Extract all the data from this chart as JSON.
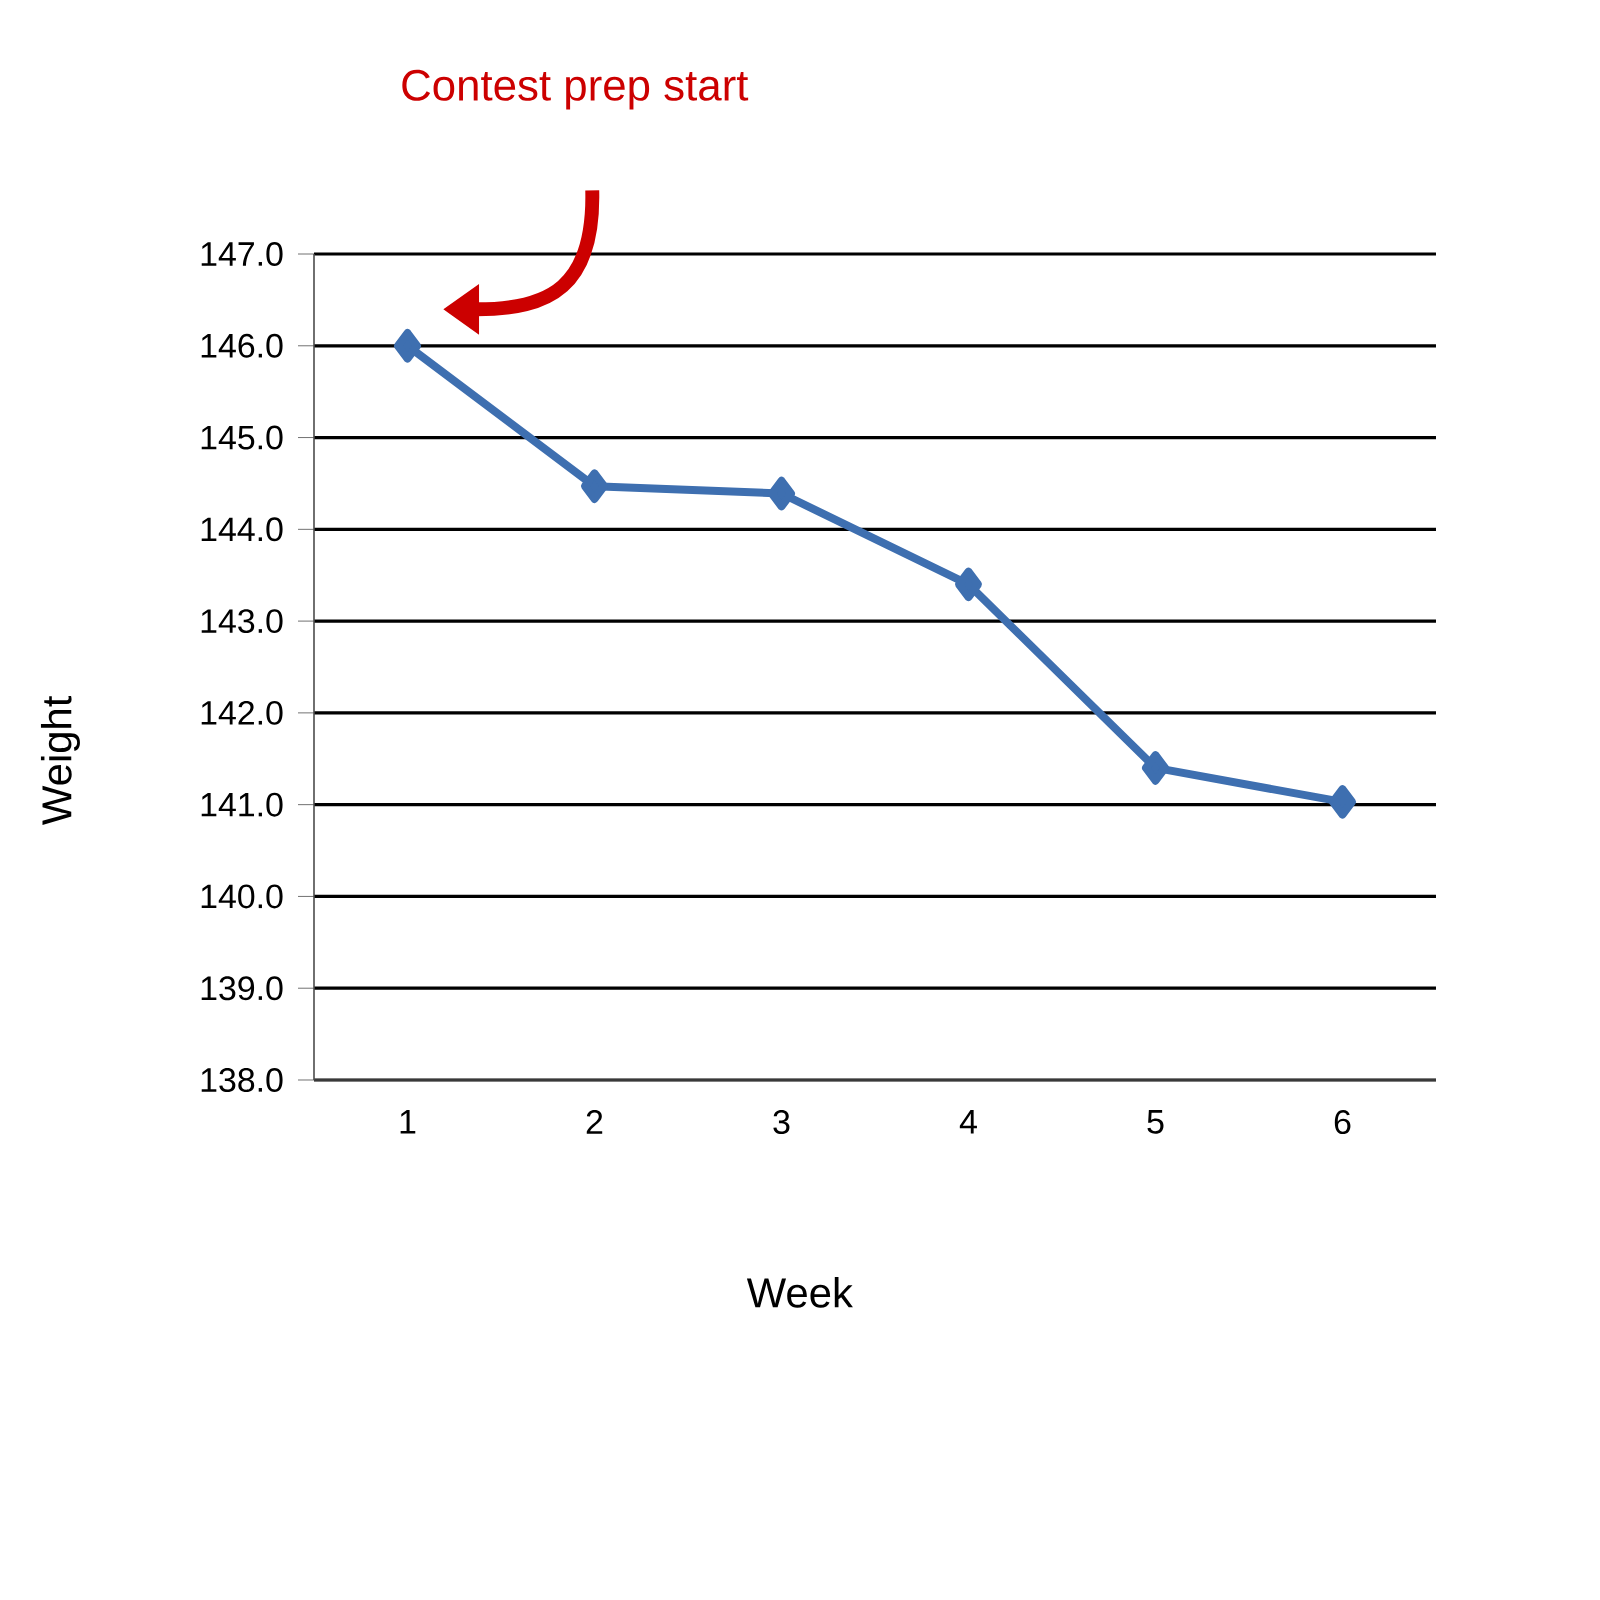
{
  "chart_data": {
    "type": "line",
    "xlabel": "Week",
    "ylabel": "Weight",
    "categories": [
      "1",
      "2",
      "3",
      "4",
      "5",
      "6"
    ],
    "series": [
      {
        "color": "#3e6fb0",
        "values": [
          146.0,
          144.47,
          144.39,
          143.4,
          141.4,
          141.03
        ]
      }
    ],
    "ylim": [
      138,
      147
    ],
    "yticks": [
      {
        "value": 138,
        "label": "138.0"
      },
      {
        "value": 139,
        "label": "139.0"
      },
      {
        "value": 140,
        "label": "140.0"
      },
      {
        "value": 141,
        "label": "141.0"
      },
      {
        "value": 142,
        "label": "142.0"
      },
      {
        "value": 143,
        "label": "143.0"
      },
      {
        "value": 144,
        "label": "144.0"
      },
      {
        "value": 145,
        "label": "145.0"
      },
      {
        "value": 146,
        "label": "146.0"
      },
      {
        "value": 147,
        "label": "147.0"
      }
    ],
    "grid": "y",
    "marker": "diamond",
    "line_style": "solid",
    "annotations": [
      "Contest prep start"
    ]
  }
}
